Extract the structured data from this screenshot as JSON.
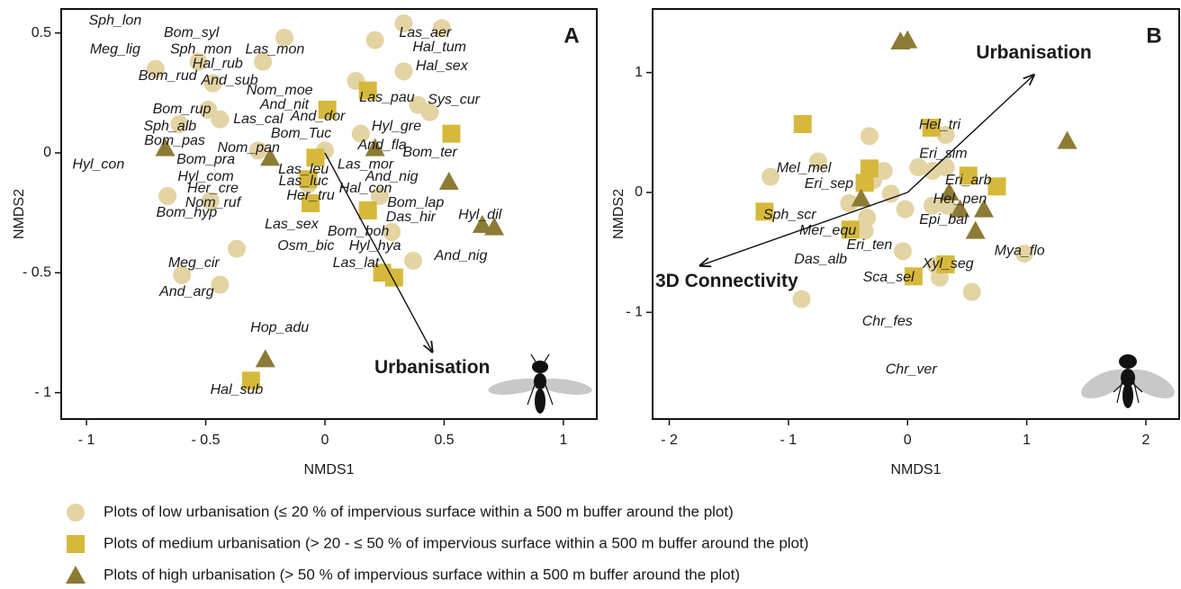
{
  "chart_data": [
    {
      "type": "scatter",
      "panel": "A",
      "x_label": "NMDS1",
      "y_label": "NMDS2",
      "xlim": [
        -1.106,
        1.14
      ],
      "ylim": [
        -1.11,
        0.6
      ],
      "xticks": [
        {
          "value": -1,
          "label": "- 1"
        },
        {
          "value": -0.5,
          "label": "- 0.5"
        },
        0,
        0.5,
        1
      ],
      "yticks": [
        0.5,
        0,
        {
          "value": -0.5,
          "label": "- 0.5"
        },
        {
          "value": -1,
          "label": "- 1"
        }
      ],
      "series": [
        {
          "marker": "circle",
          "color": "#e3d4a3",
          "x": [
            0.33,
            0.49,
            -0.17,
            0.21,
            -0.53,
            -0.71,
            -0.26,
            0.33,
            -0.47,
            0.13,
            -0.49,
            -0.44,
            -0.61,
            0.39,
            0.44,
            -0.28,
            0.0,
            0.15,
            -0.66,
            -0.48,
            0.23,
            -0.37,
            -0.6,
            -0.44,
            0.37,
            0.28,
            -0.07
          ],
          "y": [
            0.54,
            0.52,
            0.48,
            0.47,
            0.38,
            0.35,
            0.38,
            0.34,
            0.29,
            0.3,
            0.18,
            0.14,
            0.12,
            0.2,
            0.17,
            0.01,
            0.01,
            0.08,
            -0.18,
            -0.2,
            -0.18,
            -0.4,
            -0.51,
            -0.55,
            -0.45,
            -0.33,
            -0.13
          ]
        },
        {
          "marker": "square",
          "color": "#d6b93c",
          "x": [
            0.18,
            0.01,
            0.53,
            -0.04,
            -0.07,
            -0.06,
            0.18,
            0.24,
            0.29,
            -0.31
          ],
          "y": [
            0.26,
            0.18,
            0.08,
            -0.02,
            -0.11,
            -0.21,
            -0.24,
            -0.5,
            -0.52,
            -0.95
          ]
        },
        {
          "marker": "triangle",
          "color": "#8c7b34",
          "x": [
            -0.67,
            -0.23,
            0.21,
            0.52,
            0.66,
            0.71,
            -0.25
          ],
          "y": [
            0.02,
            -0.02,
            0.02,
            -0.12,
            -0.3,
            -0.31,
            -0.86
          ]
        }
      ],
      "species": {
        "names": [
          "Sph_lon",
          "Bom_syl",
          "Meg_lig",
          "Sph_mon",
          "Las_mon",
          "Las_aer",
          "Hal_tum",
          "Hal_rub",
          "Hal_sex",
          "Bom_rud",
          "And_sub",
          "Nom_moe",
          "Las_pau",
          "Sys_cur",
          "Bom_rup",
          "And_nit",
          "Las_cal",
          "And_dor",
          "Sph_alb",
          "Hyl_gre",
          "Bom_Tuc",
          "Bom_pas",
          "Nom_pan",
          "And_fla",
          "Bom_ter",
          "Hyl_con",
          "Bom_pra",
          "Las_leu",
          "Las_mor",
          "Hyl_com",
          "And_nig",
          "Las_luc",
          "Her_cre",
          "Hal_con",
          "Nom_ruf",
          "Her_tru",
          "Das_hir",
          "Bom_hyp",
          "Bom_lap",
          "Hyl_dil",
          "Las_sex",
          "Bom_boh",
          "Osm_bic",
          "Hyl_hya",
          "And_nig",
          "Las_lat",
          "Meg_cir",
          "And_arg",
          "Hop_adu",
          "Hal_sub"
        ],
        "x": [
          -0.88,
          -0.56,
          -0.88,
          -0.52,
          -0.21,
          0.42,
          0.48,
          -0.45,
          0.49,
          -0.66,
          -0.4,
          -0.19,
          0.26,
          0.54,
          -0.6,
          -0.17,
          -0.28,
          -0.03,
          -0.65,
          0.3,
          -0.1,
          -0.63,
          -0.32,
          0.24,
          0.44,
          -0.95,
          -0.5,
          -0.09,
          0.17,
          -0.5,
          0.28,
          -0.09,
          -0.47,
          0.17,
          -0.47,
          -0.06,
          0.36,
          -0.58,
          0.38,
          0.65,
          -0.14,
          0.14,
          -0.08,
          0.21,
          0.57,
          0.13,
          -0.55,
          -0.58,
          -0.19,
          -0.37
        ],
        "y": [
          0.55,
          0.5,
          0.43,
          0.43,
          0.43,
          0.5,
          0.44,
          0.37,
          0.36,
          0.32,
          0.3,
          0.26,
          0.23,
          0.22,
          0.18,
          0.2,
          0.14,
          0.15,
          0.11,
          0.11,
          0.08,
          0.05,
          0.02,
          0.03,
          0.0,
          -0.05,
          -0.03,
          -0.07,
          -0.05,
          -0.1,
          -0.1,
          -0.12,
          -0.15,
          -0.15,
          -0.21,
          -0.18,
          -0.27,
          -0.25,
          -0.21,
          -0.26,
          -0.3,
          -0.33,
          -0.39,
          -0.39,
          -0.43,
          -0.46,
          -0.46,
          -0.58,
          -0.73,
          -0.99
        ]
      },
      "arrows": [
        {
          "label": "Urbanisation",
          "x": 0.45,
          "y": -0.83
        }
      ]
    },
    {
      "type": "scatter",
      "panel": "B",
      "x_label": "NMDS1",
      "y_label": "NMDS2",
      "xlim": [
        -2.14,
        2.28
      ],
      "ylim": [
        -1.89,
        1.53
      ],
      "xticks": [
        {
          "value": -2,
          "label": "- 2"
        },
        {
          "value": -1,
          "label": "- 1"
        },
        0,
        1,
        2
      ],
      "yticks": [
        1,
        0,
        {
          "value": -1,
          "label": "- 1"
        }
      ],
      "series": [
        {
          "marker": "circle",
          "color": "#e3d4a3",
          "x": [
            -0.32,
            0.32,
            -0.75,
            -1.15,
            -0.2,
            0.09,
            0.21,
            0.32,
            -0.29,
            -0.14,
            -0.02,
            -0.49,
            -0.34,
            0.21,
            0.33,
            -0.36,
            -0.04,
            0.24,
            0.27,
            -0.89,
            0.54,
            0.98
          ],
          "y": [
            0.47,
            0.48,
            0.26,
            0.13,
            0.18,
            0.21,
            0.18,
            0.21,
            0.1,
            -0.01,
            -0.14,
            -0.09,
            -0.21,
            -0.11,
            -0.11,
            -0.32,
            -0.49,
            -0.61,
            -0.71,
            -0.89,
            -0.83,
            -0.51
          ]
        },
        {
          "marker": "square",
          "color": "#d6b93c",
          "x": [
            -0.88,
            0.2,
            -0.32,
            -0.36,
            0.51,
            0.75,
            -1.2,
            -0.48,
            0.32,
            0.05
          ],
          "y": [
            0.57,
            0.54,
            0.2,
            0.08,
            0.14,
            0.05,
            -0.16,
            -0.31,
            -0.6,
            -0.7
          ]
        },
        {
          "marker": "triangle",
          "color": "#8c7b34",
          "x": [
            -0.06,
            0.0,
            1.34,
            -0.39,
            0.35,
            0.44,
            0.64,
            0.57
          ],
          "y": [
            1.26,
            1.27,
            0.43,
            -0.05,
            0.0,
            -0.14,
            -0.14,
            -0.32
          ]
        }
      ],
      "species": {
        "names": [
          "Hel_tri",
          "Eri_sim",
          "Mel_mel",
          "Eri_arb",
          "Eri_sep",
          "Hel_pen",
          "Sph_scr",
          "Epi_bal",
          "Mer_equ",
          "Eri_ten",
          "Mya_flo",
          "Das_alb",
          "Xyl_seg",
          "Sca_sel",
          "Chr_fes",
          "Chr_ver"
        ],
        "x": [
          0.27,
          0.3,
          -0.87,
          0.51,
          -0.66,
          0.44,
          -0.99,
          0.3,
          -0.67,
          -0.32,
          0.94,
          -0.73,
          0.34,
          -0.16,
          -0.17,
          0.03
        ],
        "y": [
          0.56,
          0.32,
          0.2,
          0.1,
          0.07,
          -0.06,
          -0.19,
          -0.23,
          -0.32,
          -0.44,
          -0.49,
          -0.56,
          -0.6,
          -0.71,
          -1.08,
          -1.48
        ]
      },
      "arrows": [
        {
          "label": "Urbanisation",
          "x": 1.06,
          "y": 0.98
        },
        {
          "label": "3D Connectivity",
          "x": -1.74,
          "y": -0.61
        }
      ]
    }
  ],
  "legend": [
    "Plots of low urbanisation (≤ 20 % of impervious surface within a 500 m buffer around the plot)",
    "Plots of medium urbanisation (> 20 - ≤ 50 % of impervious surface within a 500 m buffer around the plot)",
    "Plots of high urbanisation (> 50 % of impervious surface within a 500 m buffer around the plot)"
  ]
}
